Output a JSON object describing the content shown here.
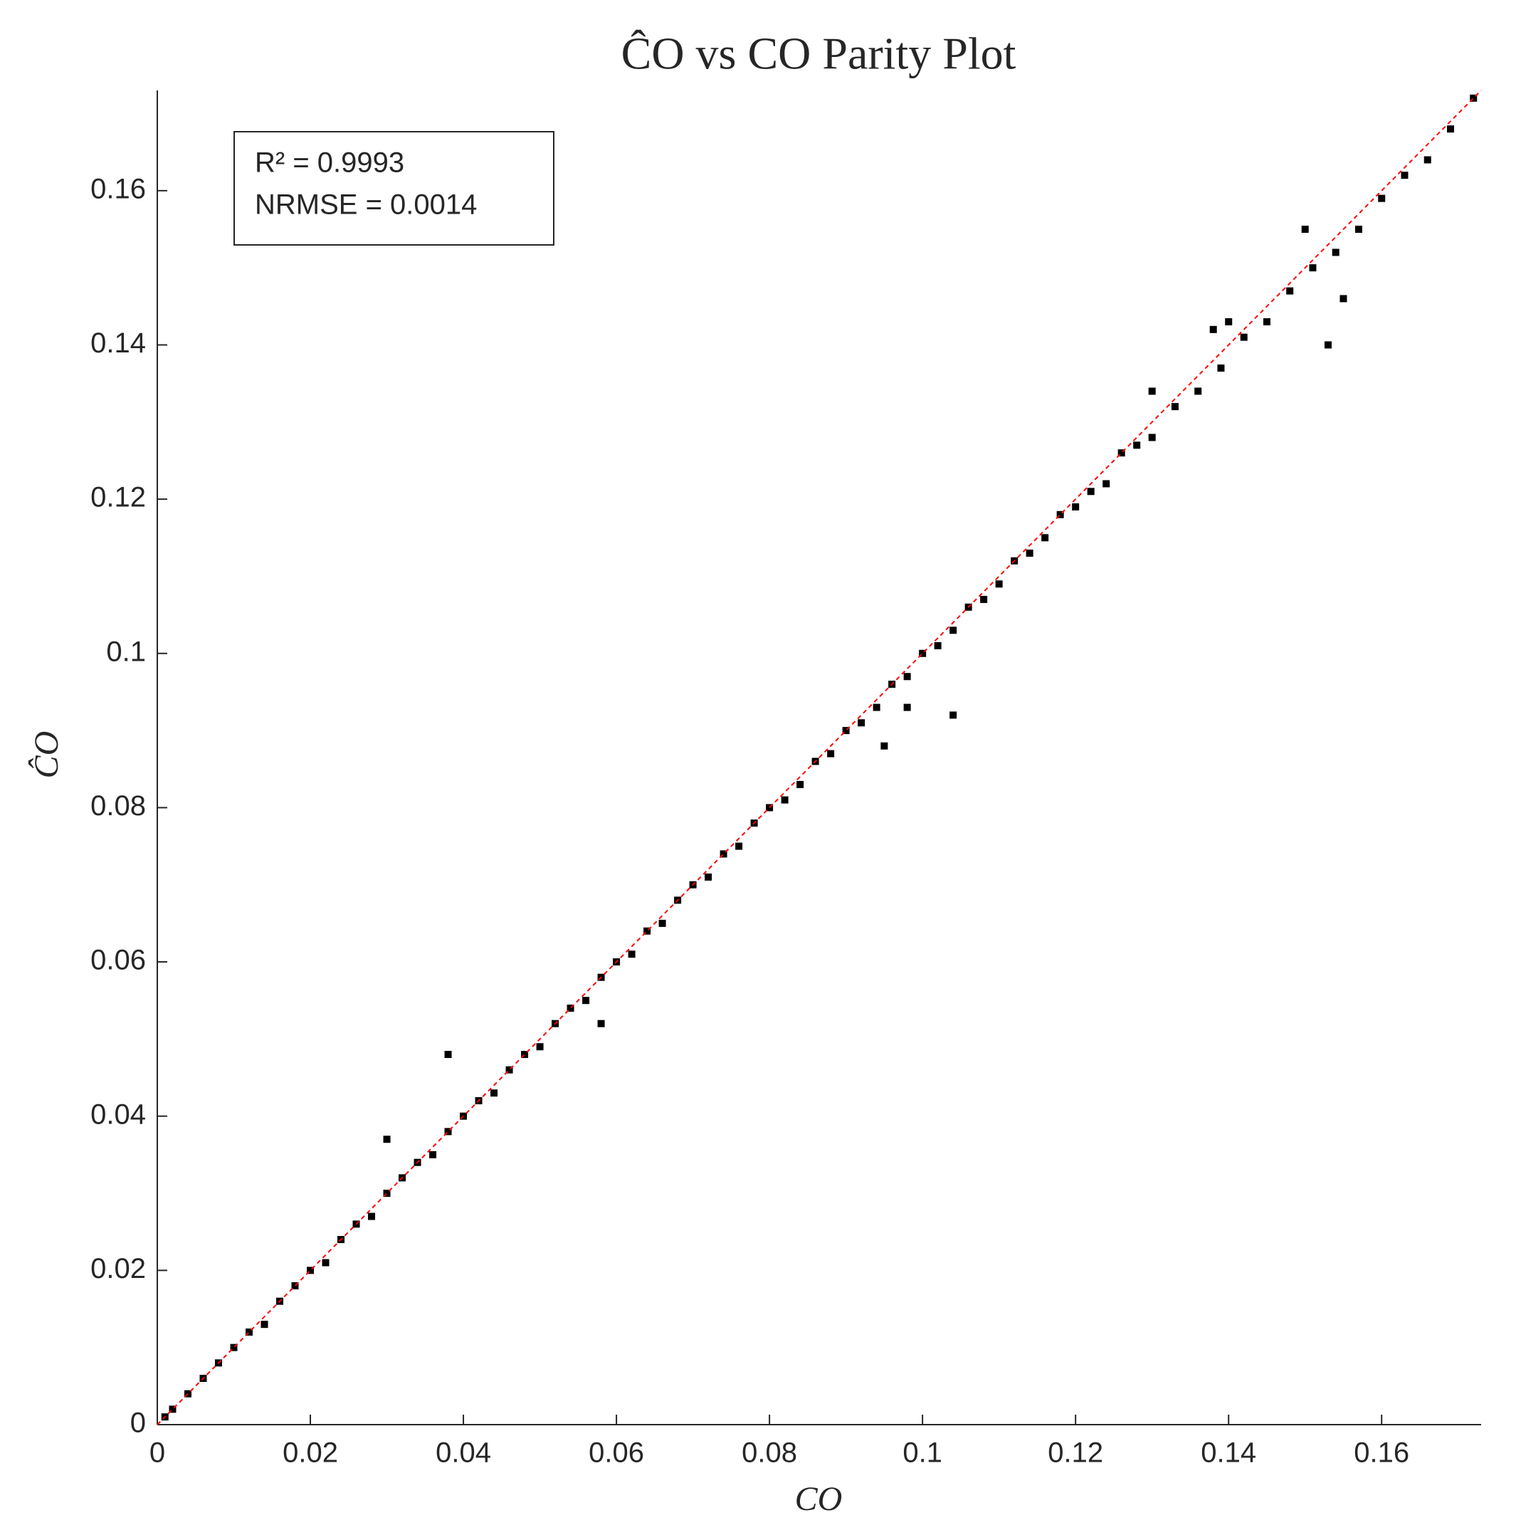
{
  "chart_data": {
    "type": "scatter",
    "title": "ĈO vs CO Parity Plot",
    "xlabel": "CO",
    "ylabel": "ĈO",
    "annotations": [
      "R² = 0.9993",
      "NRMSE = 0.0014"
    ],
    "xlim": [
      0,
      0.173
    ],
    "ylim": [
      0,
      0.173
    ],
    "xticks": [
      0,
      0.02,
      0.04,
      0.06,
      0.08,
      0.1,
      0.12,
      0.14,
      0.16
    ],
    "yticks": [
      0,
      0.02,
      0.04,
      0.06,
      0.08,
      0.1,
      0.12,
      0.14,
      0.16
    ],
    "color": "#000000",
    "reference_line": {
      "x": [
        0,
        0.173
      ],
      "y": [
        0,
        0.173
      ],
      "color": "#ff0000"
    },
    "x": [
      0.001,
      0.002,
      0.004,
      0.006,
      0.008,
      0.01,
      0.012,
      0.014,
      0.016,
      0.018,
      0.02,
      0.022,
      0.024,
      0.026,
      0.028,
      0.03,
      0.032,
      0.034,
      0.036,
      0.038,
      0.04,
      0.042,
      0.044,
      0.046,
      0.048,
      0.05,
      0.052,
      0.054,
      0.056,
      0.058,
      0.06,
      0.062,
      0.064,
      0.066,
      0.068,
      0.07,
      0.072,
      0.074,
      0.076,
      0.078,
      0.08,
      0.082,
      0.084,
      0.086,
      0.088,
      0.09,
      0.092,
      0.094,
      0.096,
      0.098,
      0.1,
      0.102,
      0.104,
      0.106,
      0.108,
      0.11,
      0.112,
      0.114,
      0.116,
      0.118,
      0.12,
      0.122,
      0.124,
      0.126,
      0.128,
      0.13,
      0.133,
      0.136,
      0.139,
      0.142,
      0.145,
      0.148,
      0.151,
      0.154,
      0.157,
      0.16,
      0.163,
      0.166,
      0.169,
      0.172,
      0.038,
      0.03,
      0.058,
      0.095,
      0.104,
      0.14,
      0.15,
      0.138,
      0.155,
      0.13,
      0.153,
      0.098
    ],
    "values": [
      0.001,
      0.002,
      0.004,
      0.006,
      0.008,
      0.01,
      0.012,
      0.013,
      0.016,
      0.018,
      0.02,
      0.021,
      0.024,
      0.026,
      0.027,
      0.03,
      0.032,
      0.034,
      0.035,
      0.038,
      0.04,
      0.042,
      0.043,
      0.046,
      0.048,
      0.049,
      0.052,
      0.054,
      0.055,
      0.058,
      0.06,
      0.061,
      0.064,
      0.065,
      0.068,
      0.07,
      0.071,
      0.074,
      0.075,
      0.078,
      0.08,
      0.081,
      0.083,
      0.086,
      0.087,
      0.09,
      0.091,
      0.093,
      0.096,
      0.097,
      0.1,
      0.101,
      0.103,
      0.106,
      0.107,
      0.109,
      0.112,
      0.113,
      0.115,
      0.118,
      0.119,
      0.121,
      0.122,
      0.126,
      0.127,
      0.128,
      0.132,
      0.134,
      0.137,
      0.141,
      0.143,
      0.147,
      0.15,
      0.152,
      0.155,
      0.159,
      0.162,
      0.164,
      0.168,
      0.172,
      0.048,
      0.037,
      0.052,
      0.088,
      0.092,
      0.143,
      0.155,
      0.142,
      0.146,
      0.134,
      0.14,
      0.093
    ]
  }
}
